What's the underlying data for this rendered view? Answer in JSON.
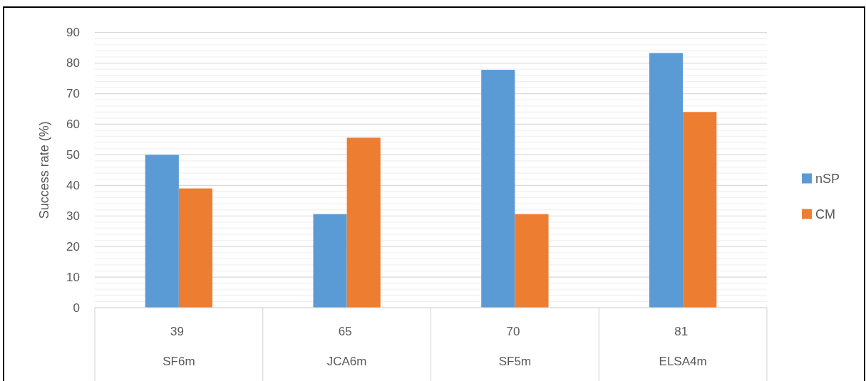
{
  "chart_data": {
    "type": "bar",
    "ylabel": "Success rate (%)",
    "categories": [
      "39\nSF6m",
      "65\nJCA6m",
      "70\nSF5m",
      "81\nELSA4m"
    ],
    "series": [
      {
        "name": "nSP",
        "color": "#5b9bd5",
        "values": [
          50,
          30.6,
          77.8,
          83.3
        ]
      },
      {
        "name": "CM",
        "color": "#ed7d31",
        "values": [
          39,
          55.6,
          30.6,
          64
        ]
      }
    ],
    "ylim": [
      0,
      90
    ],
    "yticks": [
      0,
      {
        "value": 2,
        "label": null
      },
      {
        "value": 4,
        "label": null
      },
      {
        "value": 6,
        "label": null
      },
      {
        "value": 8,
        "label": null
      },
      10,
      {
        "value": 12,
        "label": null
      },
      {
        "value": 14,
        "label": null
      },
      {
        "value": 16,
        "label": null
      },
      {
        "value": 18,
        "label": null
      },
      20,
      {
        "value": 22,
        "label": null
      },
      {
        "value": 24,
        "label": null
      },
      {
        "value": 26,
        "label": null
      },
      {
        "value": 28,
        "label": null
      },
      30,
      {
        "value": 32,
        "label": null
      },
      {
        "value": 34,
        "label": null
      },
      {
        "value": 36,
        "label": null
      },
      {
        "value": 38,
        "label": null
      },
      40,
      {
        "value": 42,
        "label": null
      },
      {
        "value": 44,
        "label": null
      },
      {
        "value": 46,
        "label": null
      },
      {
        "value": 48,
        "label": null
      },
      50,
      {
        "value": 52,
        "label": null
      },
      {
        "value": 54,
        "label": null
      },
      {
        "value": 56,
        "label": null
      },
      {
        "value": 58,
        "label": null
      },
      60,
      {
        "value": 62,
        "label": null
      },
      {
        "value": 64,
        "label": null
      },
      {
        "value": 66,
        "label": null
      },
      {
        "value": 68,
        "label": null
      },
      70,
      {
        "value": 72,
        "label": null
      },
      {
        "value": 74,
        "label": null
      },
      {
        "value": 76,
        "label": null
      },
      {
        "value": 78,
        "label": null
      },
      80,
      {
        "value": 82,
        "label": null
      },
      {
        "value": 84,
        "label": null
      },
      {
        "value": 86,
        "label": null
      },
      {
        "value": 88,
        "label": null
      },
      90
    ],
    "grid": "y",
    "legend": "right"
  }
}
